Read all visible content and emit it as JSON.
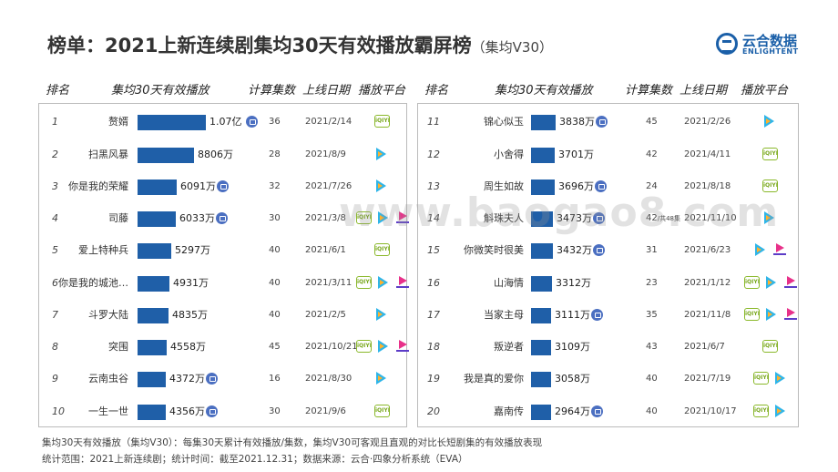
{
  "title": {
    "main": "榜单：2021上新连续剧集均30天有效播放霸屏榜",
    "sub": "（集均V30）"
  },
  "logo": {
    "cn": "云合数据",
    "en": "ENLIGHTENT"
  },
  "watermark": "www.baogao8.com",
  "headers": {
    "rank": "排名",
    "name": "集均30天有效播放",
    "episodes": "计算集数",
    "date": "上线日期",
    "platform": "播放平台"
  },
  "badge_color": "#4b6fc1",
  "bar_color": "#1f5fa8",
  "platform_icons": {
    "iqiyi": "iqiyi-logo-icon",
    "tencent": "tencent-video-logo-icon",
    "youku": "youku-logo-icon"
  },
  "iqiyi_text": "iQIYI",
  "rows": [
    {
      "rank": "1",
      "name": "赘婿",
      "display_value": "1.07亿",
      "value_wan": 10700,
      "badge": true,
      "episodes": "36",
      "episodes_note": "",
      "date": "2021/2/14",
      "platforms": [
        "iqiyi"
      ]
    },
    {
      "rank": "2",
      "name": "扫黑风暴",
      "display_value": "8806万",
      "value_wan": 8806,
      "badge": false,
      "episodes": "28",
      "episodes_note": "",
      "date": "2021/8/9",
      "platforms": [
        "tencent"
      ]
    },
    {
      "rank": "3",
      "name": "你是我的荣耀",
      "display_value": "6091万",
      "value_wan": 6091,
      "badge": true,
      "episodes": "32",
      "episodes_note": "",
      "date": "2021/7/26",
      "platforms": [
        "tencent"
      ]
    },
    {
      "rank": "4",
      "name": "司藤",
      "display_value": "6033万",
      "value_wan": 6033,
      "badge": true,
      "episodes": "30",
      "episodes_note": "",
      "date": "2021/3/8",
      "platforms": [
        "iqiyi",
        "tencent",
        "youku"
      ]
    },
    {
      "rank": "5",
      "name": "爱上特种兵",
      "display_value": "5297万",
      "value_wan": 5297,
      "badge": false,
      "episodes": "40",
      "episodes_note": "",
      "date": "2021/6/1",
      "platforms": [
        "iqiyi"
      ]
    },
    {
      "rank": "6",
      "name": "你是我的城池…",
      "display_value": "4931万",
      "value_wan": 4931,
      "badge": false,
      "episodes": "40",
      "episodes_note": "",
      "date": "2021/3/11",
      "platforms": [
        "iqiyi",
        "tencent",
        "youku"
      ]
    },
    {
      "rank": "7",
      "name": "斗罗大陆",
      "display_value": "4835万",
      "value_wan": 4835,
      "badge": false,
      "episodes": "40",
      "episodes_note": "",
      "date": "2021/2/5",
      "platforms": [
        "tencent"
      ]
    },
    {
      "rank": "8",
      "name": "突围",
      "display_value": "4558万",
      "value_wan": 4558,
      "badge": false,
      "episodes": "45",
      "episodes_note": "",
      "date": "2021/10/21",
      "platforms": [
        "iqiyi",
        "tencent",
        "youku"
      ]
    },
    {
      "rank": "9",
      "name": "云南虫谷",
      "display_value": "4372万",
      "value_wan": 4372,
      "badge": true,
      "episodes": "16",
      "episodes_note": "",
      "date": "2021/8/30",
      "platforms": [
        "tencent"
      ]
    },
    {
      "rank": "10",
      "name": "一生一世",
      "display_value": "4356万",
      "value_wan": 4356,
      "badge": true,
      "episodes": "30",
      "episodes_note": "",
      "date": "2021/9/6",
      "platforms": [
        "iqiyi"
      ]
    },
    {
      "rank": "11",
      "name": "锦心似玉",
      "display_value": "3838万",
      "value_wan": 3838,
      "badge": true,
      "episodes": "45",
      "episodes_note": "",
      "date": "2021/2/26",
      "platforms": [
        "tencent"
      ]
    },
    {
      "rank": "12",
      "name": "小舍得",
      "display_value": "3701万",
      "value_wan": 3701,
      "badge": false,
      "episodes": "42",
      "episodes_note": "",
      "date": "2021/4/11",
      "platforms": [
        "iqiyi"
      ]
    },
    {
      "rank": "13",
      "name": "周生如故",
      "display_value": "3696万",
      "value_wan": 3696,
      "badge": true,
      "episodes": "24",
      "episodes_note": "",
      "date": "2021/8/18",
      "platforms": [
        "iqiyi"
      ]
    },
    {
      "rank": "14",
      "name": "斛珠夫人",
      "display_value": "3473万",
      "value_wan": 3473,
      "badge": true,
      "episodes": "42",
      "episodes_note": "/共48集",
      "date": "2021/11/10",
      "platforms": [
        "tencent"
      ]
    },
    {
      "rank": "15",
      "name": "你微笑时很美",
      "display_value": "3432万",
      "value_wan": 3432,
      "badge": true,
      "episodes": "31",
      "episodes_note": "",
      "date": "2021/6/23",
      "platforms": [
        "tencent",
        "youku"
      ]
    },
    {
      "rank": "16",
      "name": "山海情",
      "display_value": "3312万",
      "value_wan": 3312,
      "badge": false,
      "episodes": "23",
      "episodes_note": "",
      "date": "2021/1/12",
      "platforms": [
        "iqiyi",
        "tencent",
        "youku"
      ]
    },
    {
      "rank": "17",
      "name": "当家主母",
      "display_value": "3111万",
      "value_wan": 3111,
      "badge": true,
      "episodes": "35",
      "episodes_note": "",
      "date": "2021/11/8",
      "platforms": [
        "iqiyi",
        "tencent",
        "youku"
      ]
    },
    {
      "rank": "18",
      "name": "叛逆者",
      "display_value": "3109万",
      "value_wan": 3109,
      "badge": false,
      "episodes": "43",
      "episodes_note": "",
      "date": "2021/6/7",
      "platforms": [
        "iqiyi"
      ]
    },
    {
      "rank": "19",
      "name": "我是真的爱你",
      "display_value": "3058万",
      "value_wan": 3058,
      "badge": false,
      "episodes": "40",
      "episodes_note": "",
      "date": "2021/7/19",
      "platforms": [
        "iqiyi",
        "tencent"
      ]
    },
    {
      "rank": "20",
      "name": "嘉南传",
      "display_value": "2964万",
      "value_wan": 2964,
      "badge": true,
      "episodes": "40",
      "episodes_note": "",
      "date": "2021/10/17",
      "platforms": [
        "iqiyi",
        "tencent"
      ]
    }
  ],
  "footer": {
    "line1": "集均30天有效播放（集均V30）：每集30天累计有效播放/集数，集均V30可客观且直观的对比长短剧集的有效播放表现",
    "line2": "统计范围：2021上新连续剧；统计时间：截至2021.12.31；数据来源：云合·四象分析系统（EVA）"
  }
}
